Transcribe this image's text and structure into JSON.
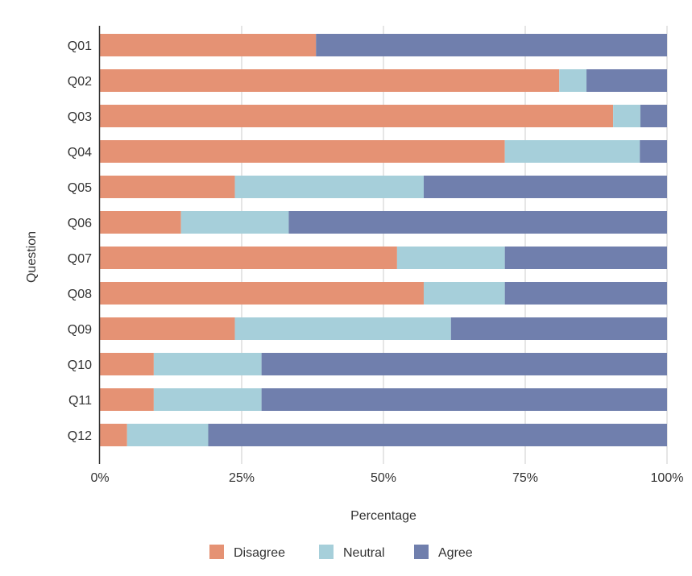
{
  "chart_data": {
    "type": "bar",
    "orientation": "horizontal",
    "stacked": true,
    "title": "",
    "xlabel": "Percentage",
    "ylabel": "Question",
    "xlim": [
      0,
      100
    ],
    "x_ticks": [
      "0%",
      "25%",
      "50%",
      "75%",
      "100%"
    ],
    "x_tick_values": [
      0,
      25,
      50,
      75,
      100
    ],
    "grid": "vertical",
    "legend_position": "bottom",
    "categories": [
      "Q01",
      "Q02",
      "Q03",
      "Q04",
      "Q05",
      "Q06",
      "Q07",
      "Q08",
      "Q09",
      "Q10",
      "Q11",
      "Q12"
    ],
    "series": [
      {
        "name": "Disagree",
        "color": "#E59274",
        "values": [
          38.1,
          81.0,
          90.5,
          71.4,
          23.8,
          14.3,
          52.4,
          57.1,
          23.8,
          9.5,
          9.5,
          4.8
        ]
      },
      {
        "name": "Neutral",
        "color": "#A6CFDA",
        "values": [
          0.0,
          4.8,
          4.8,
          23.8,
          33.3,
          19.0,
          19.0,
          14.3,
          38.1,
          19.0,
          19.0,
          14.3
        ]
      },
      {
        "name": "Agree",
        "color": "#707FAD",
        "values": [
          61.9,
          14.2,
          4.7,
          4.8,
          42.9,
          66.7,
          28.6,
          28.6,
          38.1,
          71.5,
          71.5,
          80.9
        ]
      }
    ]
  }
}
